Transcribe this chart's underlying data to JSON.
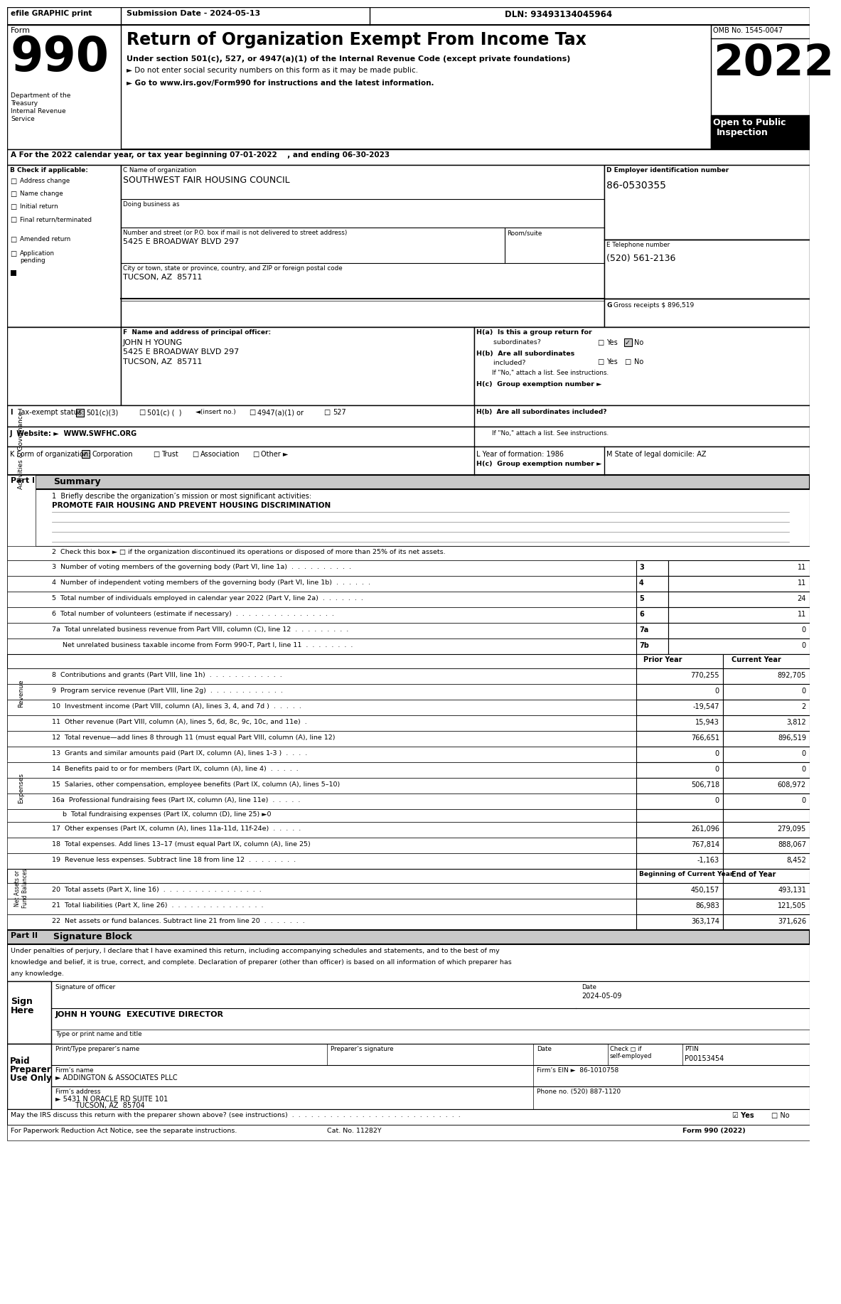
{
  "title_header": "Return of Organization Exempt From Income Tax",
  "form_number": "990",
  "year": "2022",
  "omb": "OMB No. 1545-0047",
  "efile_text": "efile GRAPHIC print",
  "submission_date": "Submission Date - 2024-05-13",
  "dln": "DLN: 93493134045964",
  "under_section": "Under section 501(c), 527, or 4947(a)(1) of the Internal Revenue Code (except private foundations)",
  "do_not_enter": "► Do not enter social security numbers on this form as it may be made public.",
  "go_to": "► Go to www.irs.gov/Form990 for instructions and the latest information.",
  "line_a": "A For the 2022 calendar year, or tax year beginning 07-01-2022    , and ending 06-30-2023",
  "check_if": "B Check if applicable:",
  "address_change": "Address change",
  "name_change": "Name change",
  "initial_return": "Initial return",
  "final_return": "Final return/terminated",
  "amended_return": "Amended return",
  "c_label": "C Name of organization",
  "org_name": "SOUTHWEST FAIR HOUSING COUNCIL",
  "doing_business": "Doing business as",
  "street_label": "Number and street (or P.O. box if mail is not delivered to street address)",
  "street": "5425 E BROADWAY BLVD 297",
  "room_suite": "Room/suite",
  "city_label": "City or town, state or province, country, and ZIP or foreign postal code",
  "city": "TUCSON, AZ  85711",
  "d_label": "D Employer identification number",
  "ein": "86-0530355",
  "e_label": "E Telephone number",
  "phone": "(520) 561-2136",
  "gross_receipts": "896,519",
  "f_label": "F  Name and address of principal officer:",
  "officer_name": "JOHN H YOUNG",
  "officer_addr1": "5425 E BROADWAY BLVD 297",
  "officer_city": "TUCSON, AZ  85711",
  "hc_label": "H(c)  Group exemption number ►",
  "j_label": "J  Website: ►  WWW.SWFHC.ORG",
  "l_label": "L Year of formation: 1986",
  "m_label": "M State of legal domicile: AZ",
  "part1_label": "Part I",
  "part1_title": "Summary",
  "line1_desc": "1  Briefly describe the organization’s mission or most significant activities:",
  "line1_mission": "PROMOTE FAIR HOUSING AND PREVENT HOUSING DISCRIMINATION",
  "line2_desc": "2  Check this box ► □ if the organization discontinued its operations or disposed of more than 25% of its net assets.",
  "line3_desc": "3  Number of voting members of the governing body (Part VI, line 1a)  .  .  .  .  .  .  .  .  .  .",
  "line3_num": "3",
  "line3_val": "11",
  "line4_desc": "4  Number of independent voting members of the governing body (Part VI, line 1b)  .  .  .  .  .  .",
  "line4_num": "4",
  "line4_val": "11",
  "line5_desc": "5  Total number of individuals employed in calendar year 2022 (Part V, line 2a)  .  .  .  .  .  .  .",
  "line5_num": "5",
  "line5_val": "24",
  "line6_desc": "6  Total number of volunteers (estimate if necessary)  .  .  .  .  .  .  .  .  .  .  .  .  .  .  .  .",
  "line6_num": "6",
  "line6_val": "11",
  "line7a_desc": "7a  Total unrelated business revenue from Part VIII, column (C), line 12  .  .  .  .  .  .  .  .  .",
  "line7a_num": "7a",
  "line7a_val": "0",
  "line7b_desc": "     Net unrelated business taxable income from Form 990-T, Part I, line 11  .  .  .  .  .  .  .  .",
  "line7b_num": "7b",
  "line7b_val": "0",
  "prior_year_label": "Prior Year",
  "current_year_label": "Current Year",
  "line8_desc": "8  Contributions and grants (Part VIII, line 1h)  .  .  .  .  .  .  .  .  .  .  .  .",
  "line8_prior": "770,255",
  "line8_current": "892,705",
  "line9_desc": "9  Program service revenue (Part VIII, line 2g)  .  .  .  .  .  .  .  .  .  .  .  .",
  "line9_prior": "0",
  "line9_current": "0",
  "line10_desc": "10  Investment income (Part VIII, column (A), lines 3, 4, and 7d )  .  .  .  .  .",
  "line10_prior": "-19,547",
  "line10_current": "2",
  "line11_desc": "11  Other revenue (Part VIII, column (A), lines 5, 6d, 8c, 9c, 10c, and 11e)  .",
  "line11_prior": "15,943",
  "line11_current": "3,812",
  "line12_desc": "12  Total revenue—add lines 8 through 11 (must equal Part VIII, column (A), line 12)",
  "line12_prior": "766,651",
  "line12_current": "896,519",
  "line13_desc": "13  Grants and similar amounts paid (Part IX, column (A), lines 1-3 )  .  .  .  .",
  "line13_prior": "0",
  "line13_current": "0",
  "line14_desc": "14  Benefits paid to or for members (Part IX, column (A), line 4)  .  .  .  .  .",
  "line14_prior": "0",
  "line14_current": "0",
  "line15_desc": "15  Salaries, other compensation, employee benefits (Part IX, column (A), lines 5–10)",
  "line15_prior": "506,718",
  "line15_current": "608,972",
  "line16a_desc": "16a  Professional fundraising fees (Part IX, column (A), line 11e)  .  .  .  .  .",
  "line16a_prior": "0",
  "line16a_current": "0",
  "line16b_desc": "     b  Total fundraising expenses (Part IX, column (D), line 25) ►0",
  "line17_desc": "17  Other expenses (Part IX, column (A), lines 11a-11d, 11f-24e)  .  .  .  .  .",
  "line17_prior": "261,096",
  "line17_current": "279,095",
  "line18_desc": "18  Total expenses. Add lines 13–17 (must equal Part IX, column (A), line 25)",
  "line18_prior": "767,814",
  "line18_current": "888,067",
  "line19_desc": "19  Revenue less expenses. Subtract line 18 from line 12  .  .  .  .  .  .  .  .",
  "line19_prior": "-1,163",
  "line19_current": "8,452",
  "boc_label": "Beginning of Current Year",
  "eoy_label": "End of Year",
  "line20_desc": "20  Total assets (Part X, line 16)  .  .  .  .  .  .  .  .  .  .  .  .  .  .  .  .",
  "line20_boc": "450,157",
  "line20_eoy": "493,131",
  "line21_desc": "21  Total liabilities (Part X, line 26)  .  .  .  .  .  .  .  .  .  .  .  .  .  .  .",
  "line21_boc": "86,983",
  "line21_eoy": "121,505",
  "line22_desc": "22  Net assets or fund balances. Subtract line 21 from line 20  .  .  .  .  .  .  .",
  "line22_boc": "363,174",
  "line22_eoy": "371,626",
  "part2_label": "Part II",
  "part2_title": "Signature Block",
  "sig_date": "2024-05-09",
  "sig_label": "Signature of officer",
  "sig_date_label": "Date",
  "officer_title": "JOHN H YOUNG  EXECUTIVE DIRECTOR",
  "type_print": "Type or print name and title",
  "preparer_name_label": "Print/Type preparer’s name",
  "preparer_sig_label": "Preparer’s signature",
  "preparer_date_label": "Date",
  "check_label": "Check □ if\nself-employed",
  "ptin_label": "PTIN",
  "ptin_val": "P00153454",
  "firms_name_label": "Firm’s name",
  "firms_name": "► ADDINGTON & ASSOCIATES PLLC",
  "firms_ein_label": "Firm’s EIN ►",
  "firms_ein": "86-1010758",
  "firms_addr_label": "Firm’s address",
  "firms_addr": "► 5431 N ORACLE RD SUITE 101",
  "firms_city": "         TUCSON, AZ  85704",
  "phone_label": "Phone no. (520) 887-1120",
  "discuss_label": "May the IRS discuss this return with the preparer shown above? (see instructions)  .  .  .  .  .  .  .  .  .  .  .  .  .  .  .  .  .  .  .  .  .  .  .  .  .  .  .",
  "discuss_yes": "☑ Yes",
  "discuss_no": "□ No",
  "paperwork_label": "For Paperwork Reduction Act Notice, see the separate instructions.",
  "cat_no": "Cat. No. 11282Y",
  "form990_footer": "Form 990 (2022)"
}
